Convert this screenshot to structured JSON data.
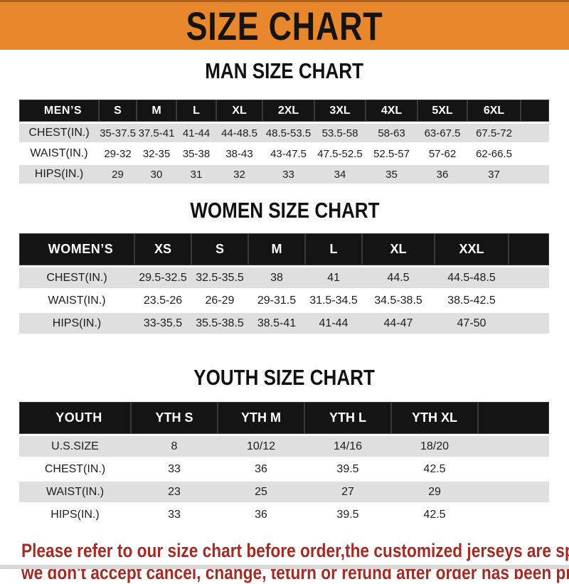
{
  "banner": {
    "title": "SIZE CHART"
  },
  "sections": [
    {
      "id": "men",
      "heading": "MAN SIZE CHART",
      "table": {
        "label": "MEN’S",
        "columns": [
          "S",
          "M",
          "L",
          "XL",
          "2XL",
          "3XL",
          "4XL",
          "5XL",
          "6XL"
        ],
        "rows": [
          {
            "label": "CHEST(IN.)",
            "values": [
              "35-37.5",
              "37.5-41",
              "41-44",
              "44-48.5",
              "48.5-53.5",
              "53.5-58",
              "58-63",
              "63-67.5",
              "67.5-72"
            ]
          },
          {
            "label": "WAIST(IN.)",
            "values": [
              "29-32",
              "32-35",
              "35-38",
              "38-43",
              "43-47.5",
              "47.5-52.5",
              "52.5-57",
              "57-62",
              "62-66.5"
            ]
          },
          {
            "label": "HIPS(IN.)",
            "values": [
              "29",
              "30",
              "31",
              "32",
              "33",
              "34",
              "35",
              "36",
              "37"
            ]
          }
        ]
      }
    },
    {
      "id": "women",
      "heading": "WOMEN SIZE CHART",
      "table": {
        "label": "WOMEN’S",
        "columns": [
          "XS",
          "S",
          "M",
          "L",
          "XL",
          "XXL"
        ],
        "rows": [
          {
            "label": "CHEST(IN.)",
            "values": [
              "29.5-32.5",
              "32.5-35.5",
              "38",
              "41",
              "44.5",
              "44.5-48.5"
            ]
          },
          {
            "label": "WAIST(IN.)",
            "values": [
              "23.5-26",
              "26-29",
              "29-31.5",
              "31.5-34.5",
              "34.5-38.5",
              "38.5-42.5"
            ]
          },
          {
            "label": "HIPS(IN.)",
            "values": [
              "33-35.5",
              "35.5-38.5",
              "38.5-41",
              "41-44",
              "44-47",
              "47-50"
            ]
          }
        ]
      }
    },
    {
      "id": "youth",
      "heading": "YOUTH SIZE CHART",
      "table": {
        "label": "YOUTH",
        "columns": [
          "YTH S",
          "YTH M",
          "YTH L",
          "YTH XL"
        ],
        "rows": [
          {
            "label": "U.S.SIZE",
            "values": [
              "8",
              "10/12",
              "14/16",
              "18/20"
            ]
          },
          {
            "label": "CHEST(IN.)",
            "values": [
              "33",
              "36",
              "39.5",
              "42.5"
            ]
          },
          {
            "label": "WAIST(IN.)",
            "values": [
              "23",
              "25",
              "27",
              "29"
            ]
          },
          {
            "label": "HIPS(IN.)",
            "values": [
              "33",
              "36",
              "39.5",
              "42.5"
            ]
          }
        ]
      }
    }
  ],
  "disclaimer": {
    "lines": [
      "Please refer to our size chart before order,the customized jerseys are special products,",
      "we don't accept cancel, change, teturn or refund after order has been placed!"
    ]
  },
  "colors": {
    "banner_orange": "#E8872B",
    "banner_top_border": "#B65E1B",
    "header_bar_black": "#141414",
    "row_gray": "#DFDFDF",
    "row_white": "#FFFFFF",
    "disclaimer_red": "#A32B24",
    "heading_black": "#111111"
  }
}
